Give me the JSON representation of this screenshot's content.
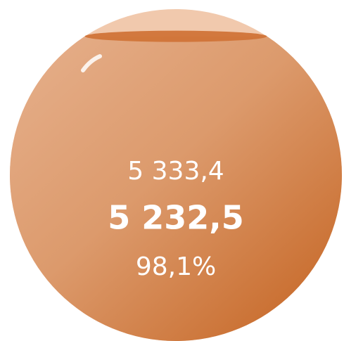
{
  "chart_data": {
    "type": "liquid-fill",
    "values": [
      5333.4,
      5232.5,
      98.1
    ],
    "value_labels": [
      "5 333,4",
      "5 232,5",
      "98,1%"
    ],
    "ylim": [
      0,
      100
    ],
    "color": "#d07438"
  }
}
